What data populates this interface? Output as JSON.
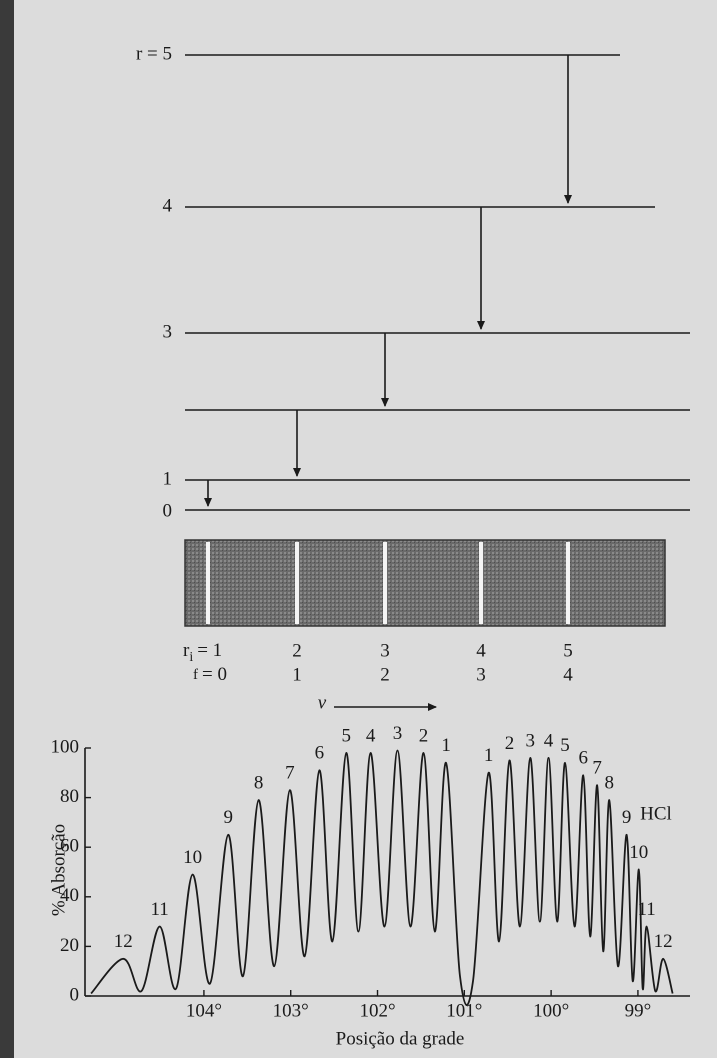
{
  "diagram": {
    "levels": [
      "r = 5",
      "4",
      "3",
      "1",
      "0"
    ],
    "band_labels": {
      "symbol": "r",
      "initial_sub": "i",
      "final_sub": "f",
      "initial": [
        "= 1",
        "2",
        "3",
        "4",
        "5"
      ],
      "final": [
        "= 0",
        "1",
        "2",
        "3",
        "4"
      ]
    },
    "frequency_symbol": "ν"
  },
  "chart_data": {
    "type": "line",
    "xlabel": "Posição da grade",
    "ylabel": "% Absorção",
    "annotation": "HCl",
    "xlim": [
      105.37,
      98.4
    ],
    "ylim": [
      0,
      100
    ],
    "xticks": [
      {
        "value": 104,
        "label": "104°"
      },
      {
        "value": 103,
        "label": "103°"
      },
      {
        "value": 102,
        "label": "102°"
      },
      {
        "value": 101,
        "label": "101°"
      },
      {
        "value": 100,
        "label": "100°"
      },
      {
        "value": 99,
        "label": "99°"
      }
    ],
    "yticks": [
      0,
      20,
      40,
      60,
      80,
      100
    ],
    "series": [
      {
        "name": "HCl",
        "color": "#1a1a1a",
        "x": [
          105.3,
          104.93,
          104.72,
          104.51,
          104.32,
          104.13,
          103.93,
          103.72,
          103.55,
          103.37,
          103.19,
          103.01,
          102.84,
          102.67,
          102.52,
          102.36,
          102.22,
          102.08,
          101.92,
          101.77,
          101.62,
          101.47,
          101.34,
          101.21,
          101.05,
          100.9,
          100.72,
          100.6,
          100.48,
          100.36,
          100.24,
          100.13,
          100.03,
          99.93,
          99.84,
          99.73,
          99.63,
          99.55,
          99.47,
          99.4,
          99.33,
          99.23,
          99.13,
          99.06,
          98.99,
          98.945,
          98.9,
          98.8,
          98.71,
          98.6
        ],
        "values": [
          1,
          15,
          2,
          28,
          3,
          49,
          5,
          65,
          8,
          79,
          12,
          83,
          16,
          91,
          22,
          98,
          26,
          98,
          28,
          99,
          28,
          98,
          26,
          94,
          8,
          6,
          90,
          22,
          95,
          28,
          96,
          30,
          96,
          30,
          94,
          28,
          89,
          24,
          85,
          18,
          79,
          12,
          65,
          6,
          51,
          3,
          28,
          2,
          15,
          1
        ],
        "labels": [
          null,
          "12",
          null,
          "11",
          null,
          "10",
          null,
          "9",
          null,
          "8",
          null,
          "7",
          null,
          "6",
          null,
          "5",
          null,
          "4",
          null,
          "3",
          null,
          "2",
          null,
          "1",
          null,
          null,
          "1",
          null,
          "2",
          null,
          "3",
          null,
          "4",
          null,
          "5",
          null,
          "6",
          null,
          "7",
          null,
          "8",
          null,
          "9",
          null,
          "10",
          null,
          "11",
          null,
          "12",
          null
        ]
      }
    ]
  }
}
